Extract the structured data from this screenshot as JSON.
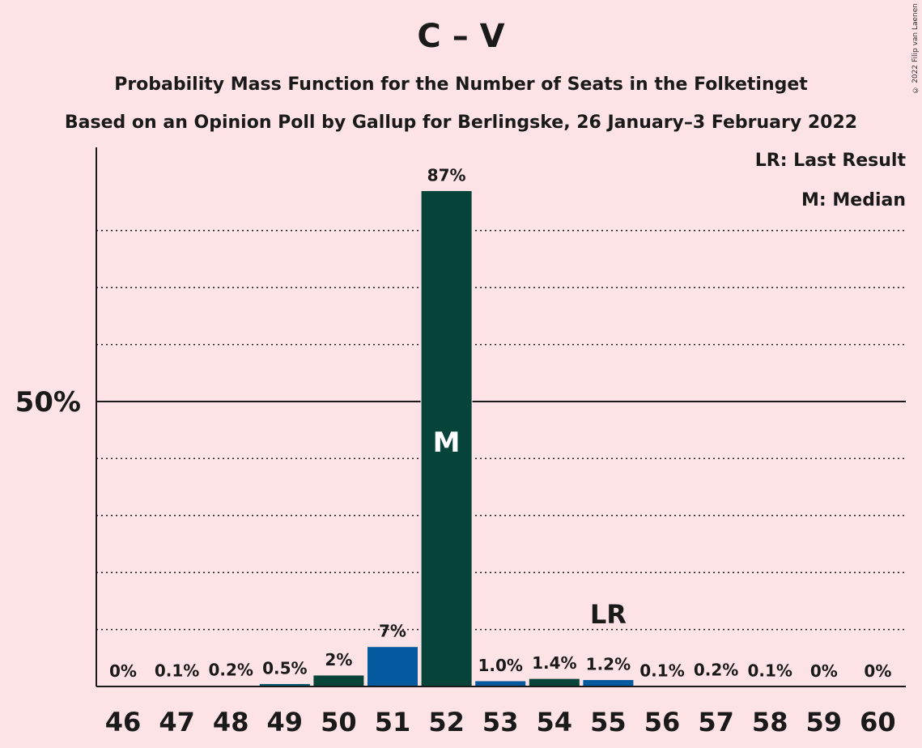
{
  "header": {
    "title": "C – V",
    "subtitle": "Probability Mass Function for the Number of Seats in the Folketinget",
    "subtitle2": "Based on an Opinion Poll by Gallup for Berlingske, 26 January–3 February 2022"
  },
  "legend": {
    "last_result": "LR: Last Result",
    "median": "M: Median"
  },
  "copyright": "© 2022 Filip van Laenen",
  "chart_data": {
    "type": "bar",
    "title": "C – V",
    "categories": [
      "46",
      "47",
      "48",
      "49",
      "50",
      "51",
      "52",
      "53",
      "54",
      "55",
      "56",
      "57",
      "58",
      "59",
      "60"
    ],
    "values": [
      0,
      0.1,
      0.2,
      0.5,
      2,
      7,
      87,
      1.0,
      1.4,
      1.2,
      0.1,
      0.2,
      0.1,
      0,
      0
    ],
    "value_labels": [
      "0%",
      "0.1%",
      "0.2%",
      "0.5%",
      "2%",
      "7%",
      "87%",
      "1.0%",
      "1.4%",
      "1.2%",
      "0.1%",
      "0.2%",
      "0.1%",
      "0%",
      "0%"
    ],
    "bar_colors": [
      "#05596e",
      "#05596e",
      "#05596e",
      "#05596e",
      "#06443a",
      "#05599e",
      "#06443a",
      "#05599e",
      "#06443a",
      "#05599e",
      "#05599e",
      "#05599e",
      "#05599e",
      "#05599e",
      "#05599e"
    ],
    "ylim": [
      0,
      95
    ],
    "y_ticks": [
      {
        "value": 50,
        "label": "50%"
      }
    ],
    "minor_gridlines": [
      10,
      20,
      30,
      40,
      60,
      70,
      80
    ],
    "median_category": "52",
    "median_marker": "M",
    "last_result_category": "55",
    "last_result_marker": "LR",
    "colors": {
      "background": "#fde3e6",
      "dark_green": "#06443a",
      "blue": "#05599e"
    }
  }
}
